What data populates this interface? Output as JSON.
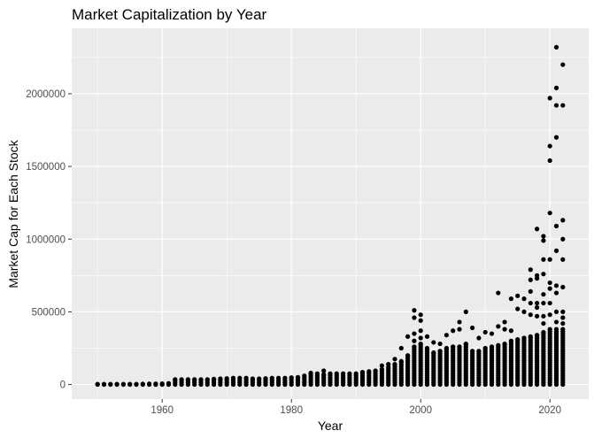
{
  "chart_data": {
    "type": "scatter",
    "title": "Market Capitalization by Year",
    "xlabel": "Year",
    "ylabel": "Market Cap for Each Stock",
    "xlim": [
      1946,
      2026
    ],
    "ylim": [
      -100000,
      2450000
    ],
    "x_ticks": [
      1960,
      1980,
      2000,
      2020
    ],
    "y_ticks": [
      0,
      500000,
      1000000,
      1500000,
      2000000
    ],
    "x_tick_labels": [
      "1960",
      "1980",
      "2000",
      "2020"
    ],
    "y_tick_labels": [
      "0",
      "500000",
      "1000000",
      "1500000",
      "2000000"
    ],
    "grid": true,
    "point_color": "#000000",
    "panel_color": "#ebebeb",
    "grid_color": "#ffffff",
    "column_max": [
      [
        1950,
        3000
      ],
      [
        1951,
        3000
      ],
      [
        1952,
        3000
      ],
      [
        1953,
        3000
      ],
      [
        1954,
        3000
      ],
      [
        1955,
        3000
      ],
      [
        1956,
        3000
      ],
      [
        1957,
        4000
      ],
      [
        1958,
        5000
      ],
      [
        1959,
        5000
      ],
      [
        1960,
        6000
      ],
      [
        1961,
        8000
      ],
      [
        1962,
        35000
      ],
      [
        1963,
        35000
      ],
      [
        1964,
        35000
      ],
      [
        1965,
        35000
      ],
      [
        1966,
        35000
      ],
      [
        1967,
        35000
      ],
      [
        1968,
        38000
      ],
      [
        1969,
        40000
      ],
      [
        1970,
        42000
      ],
      [
        1971,
        45000
      ],
      [
        1972,
        45000
      ],
      [
        1973,
        45000
      ],
      [
        1974,
        40000
      ],
      [
        1975,
        40000
      ],
      [
        1976,
        42000
      ],
      [
        1977,
        45000
      ],
      [
        1978,
        45000
      ],
      [
        1979,
        45000
      ],
      [
        1980,
        48000
      ],
      [
        1981,
        50000
      ],
      [
        1982,
        60000
      ],
      [
        1983,
        75000
      ],
      [
        1984,
        75000
      ],
      [
        1985,
        70000
      ],
      [
        1986,
        75000
      ],
      [
        1987,
        75000
      ],
      [
        1988,
        75000
      ],
      [
        1989,
        75000
      ],
      [
        1990,
        75000
      ],
      [
        1991,
        85000
      ],
      [
        1992,
        90000
      ],
      [
        1993,
        95000
      ],
      [
        1994,
        105000
      ],
      [
        1995,
        120000
      ],
      [
        1996,
        140000
      ],
      [
        1997,
        160000
      ],
      [
        1998,
        200000
      ],
      [
        1999,
        260000
      ],
      [
        2000,
        280000
      ],
      [
        2001,
        250000
      ],
      [
        2002,
        220000
      ],
      [
        2003,
        230000
      ],
      [
        2004,
        250000
      ],
      [
        2005,
        260000
      ],
      [
        2006,
        260000
      ],
      [
        2007,
        280000
      ],
      [
        2008,
        230000
      ],
      [
        2009,
        230000
      ],
      [
        2010,
        250000
      ],
      [
        2011,
        260000
      ],
      [
        2012,
        270000
      ],
      [
        2013,
        280000
      ],
      [
        2014,
        300000
      ],
      [
        2015,
        310000
      ],
      [
        2016,
        320000
      ],
      [
        2017,
        330000
      ],
      [
        2018,
        340000
      ],
      [
        2019,
        360000
      ],
      [
        2020,
        380000
      ],
      [
        2021,
        380000
      ],
      [
        2022,
        380000
      ]
    ],
    "outliers": [
      [
        1983,
        80000
      ],
      [
        1985,
        95000
      ],
      [
        1994,
        130000
      ],
      [
        1995,
        140000
      ],
      [
        1996,
        175000
      ],
      [
        1997,
        250000
      ],
      [
        1998,
        330000
      ],
      [
        1999,
        510000
      ],
      [
        1999,
        460000
      ],
      [
        1999,
        350000
      ],
      [
        1999,
        300000
      ],
      [
        2000,
        480000
      ],
      [
        2000,
        440000
      ],
      [
        2000,
        370000
      ],
      [
        2000,
        320000
      ],
      [
        2001,
        330000
      ],
      [
        2002,
        290000
      ],
      [
        2003,
        280000
      ],
      [
        2004,
        340000
      ],
      [
        2005,
        370000
      ],
      [
        2006,
        430000
      ],
      [
        2006,
        380000
      ],
      [
        2007,
        500000
      ],
      [
        2008,
        390000
      ],
      [
        2009,
        320000
      ],
      [
        2010,
        360000
      ],
      [
        2011,
        350000
      ],
      [
        2012,
        630000
      ],
      [
        2012,
        400000
      ],
      [
        2013,
        430000
      ],
      [
        2013,
        380000
      ],
      [
        2014,
        590000
      ],
      [
        2014,
        370000
      ],
      [
        2015,
        610000
      ],
      [
        2015,
        520000
      ],
      [
        2016,
        590000
      ],
      [
        2016,
        500000
      ],
      [
        2017,
        790000
      ],
      [
        2017,
        720000
      ],
      [
        2017,
        640000
      ],
      [
        2017,
        560000
      ],
      [
        2017,
        480000
      ],
      [
        2018,
        1070000
      ],
      [
        2018,
        750000
      ],
      [
        2018,
        730000
      ],
      [
        2018,
        560000
      ],
      [
        2018,
        530000
      ],
      [
        2018,
        470000
      ],
      [
        2019,
        1020000
      ],
      [
        2019,
        990000
      ],
      [
        2019,
        860000
      ],
      [
        2019,
        760000
      ],
      [
        2019,
        620000
      ],
      [
        2019,
        560000
      ],
      [
        2019,
        470000
      ],
      [
        2019,
        420000
      ],
      [
        2020,
        1970000
      ],
      [
        2020,
        1640000
      ],
      [
        2020,
        1540000
      ],
      [
        2020,
        1180000
      ],
      [
        2020,
        860000
      ],
      [
        2020,
        700000
      ],
      [
        2020,
        660000
      ],
      [
        2020,
        560000
      ],
      [
        2020,
        480000
      ],
      [
        2021,
        2320000
      ],
      [
        2021,
        2040000
      ],
      [
        2021,
        1920000
      ],
      [
        2021,
        1700000
      ],
      [
        2021,
        1090000
      ],
      [
        2021,
        920000
      ],
      [
        2021,
        680000
      ],
      [
        2021,
        630000
      ],
      [
        2021,
        500000
      ],
      [
        2021,
        430000
      ],
      [
        2022,
        2200000
      ],
      [
        2022,
        1920000
      ],
      [
        2022,
        1130000
      ],
      [
        2022,
        1000000
      ],
      [
        2022,
        860000
      ],
      [
        2022,
        670000
      ],
      [
        2022,
        500000
      ],
      [
        2022,
        460000
      ],
      [
        2022,
        420000
      ]
    ]
  }
}
